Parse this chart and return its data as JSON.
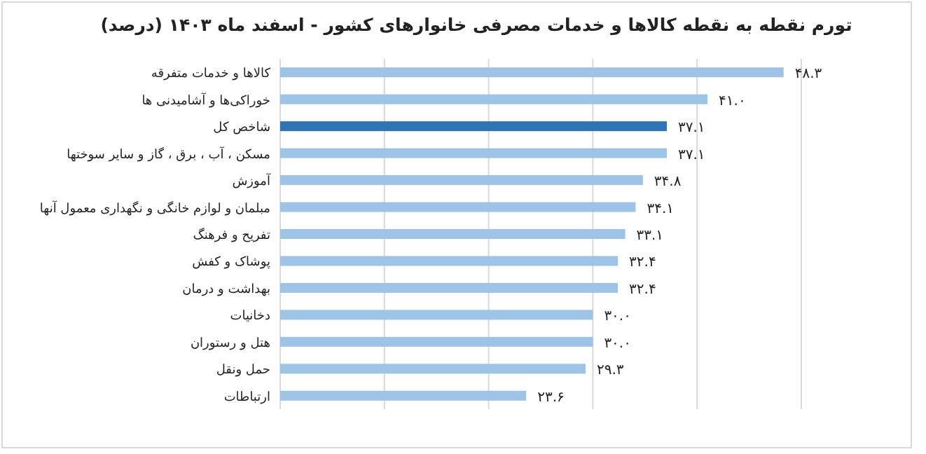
{
  "chart_data": {
    "type": "bar",
    "orientation": "horizontal",
    "title": "تورم نقطه به نقطه کالاها و خدمات مصرفی خانوارهای کشور - اسفند ماه ۱۴۰۳ (درصد)",
    "categories": [
      "کالاها و خدمات متفرقه",
      "خوراکی‌ها و آشامیدنی ها",
      "شاخص کل",
      "مسکن ، آب ، برق ، گاز و سایر سوختها",
      "آموزش",
      "مبلمان و لوازم خانگی و نگهداری معمول آنها",
      "تفریح و فرهنگ",
      "پوشاک و کفش",
      "بهداشت و درمان",
      "دخانیات",
      "هتل و رستوران",
      "حمل ونقل",
      "ارتباطات"
    ],
    "values": [
      48.3,
      41.0,
      37.1,
      37.1,
      34.8,
      34.1,
      33.1,
      32.4,
      32.4,
      30.0,
      30.0,
      29.3,
      23.6
    ],
    "value_labels": [
      "۴۸.۳",
      "۴۱.۰",
      "۳۷.۱",
      "۳۷.۱",
      "۳۴.۸",
      "۳۴.۱",
      "۳۳.۱",
      "۳۲.۴",
      "۳۲.۴",
      "۳۰.۰",
      "۳۰.۰",
      "۲۹.۳",
      "۲۳.۶"
    ],
    "colors": [
      "#9dc3e6",
      "#9dc3e6",
      "#2e75b6",
      "#9dc3e6",
      "#9dc3e6",
      "#9dc3e6",
      "#9dc3e6",
      "#9dc3e6",
      "#9dc3e6",
      "#9dc3e6",
      "#9dc3e6",
      "#9dc3e6",
      "#9dc3e6"
    ],
    "xlim": [
      0,
      50
    ],
    "xticks": [
      {
        "value": 0,
        "label": null
      },
      {
        "value": 10,
        "label": null
      },
      {
        "value": 20,
        "label": null
      },
      {
        "value": 30,
        "label": null
      },
      {
        "value": 40,
        "label": null
      },
      {
        "value": 50,
        "label": null
      }
    ],
    "grid": "x"
  }
}
